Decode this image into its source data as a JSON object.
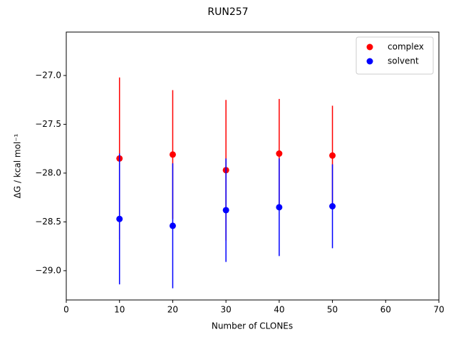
{
  "chart_data": {
    "type": "errorbar",
    "title": "RUN257",
    "x_label": "Number of CLONEs",
    "y_label": "ΔG / kcal mol⁻¹",
    "x": [
      10,
      20,
      30,
      40,
      50
    ],
    "series": [
      {
        "name": "complex",
        "color": "#ff0000",
        "values": [
          -27.85,
          -27.81,
          -27.97,
          -27.8,
          -27.82
        ],
        "errors": [
          0.83,
          0.66,
          0.72,
          0.56,
          0.51
        ]
      },
      {
        "name": "solvent",
        "color": "#0000ff",
        "values": [
          -28.47,
          -28.54,
          -28.38,
          -28.35,
          -28.34
        ],
        "errors": [
          0.67,
          0.64,
          0.53,
          0.5,
          0.43
        ]
      }
    ],
    "xlim": [
      0,
      70
    ],
    "xticks": [
      0,
      10,
      20,
      30,
      40,
      50,
      60,
      70
    ],
    "ylim": [
      -29.3,
      -26.555
    ],
    "yticks": [
      {
        "value": -29.0,
        "label": "−29.0"
      },
      {
        "value": -28.5,
        "label": "−28.5"
      },
      {
        "value": -28.0,
        "label": "−28.0"
      },
      {
        "value": -27.5,
        "label": "−27.5"
      },
      {
        "value": -27.0,
        "label": "−27.0"
      }
    ],
    "legend": "upper right",
    "grid": false
  }
}
